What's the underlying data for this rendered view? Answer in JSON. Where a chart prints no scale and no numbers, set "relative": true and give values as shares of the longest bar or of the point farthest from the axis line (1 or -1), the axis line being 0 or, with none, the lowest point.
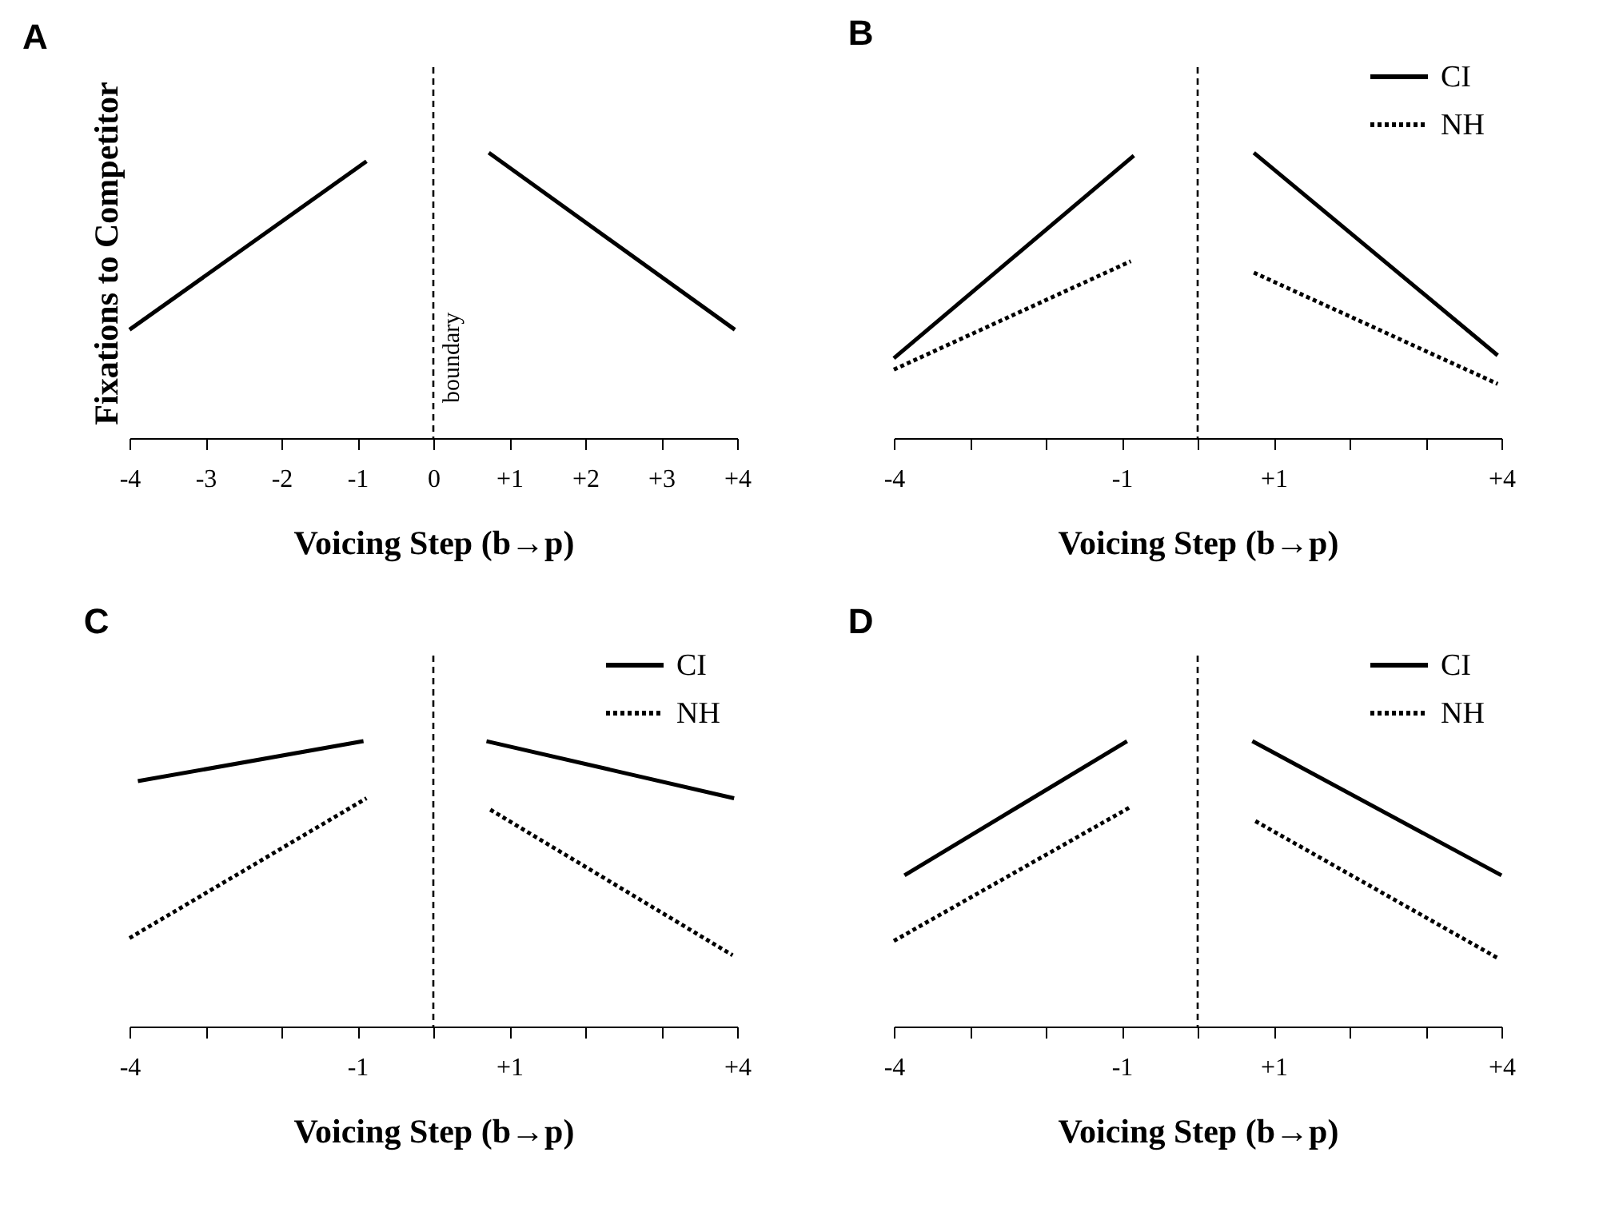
{
  "chart_data": [
    {
      "type": "line",
      "title": "A",
      "xlabel": "Voicing Step (b→p)",
      "ylabel": "Fixations to Competitor",
      "relative": true,
      "tick_labels": "x",
      "xlim": [
        -4,
        4
      ],
      "xticks": [
        -4,
        -3,
        -2,
        {
          "value": -1,
          "label": "-1"
        },
        0,
        {
          "value": 1,
          "label": "+1"
        },
        {
          "value": 2,
          "label": "+2"
        },
        {
          "value": 3,
          "label": "+3"
        },
        {
          "value": 4,
          "label": "+4"
        }
      ],
      "grid": false,
      "legend": false,
      "series": [
        {
          "color": "#000000",
          "line_style": "solid",
          "x": [
            -4,
            -0.88,
            0,
            0.73,
            3.97
          ],
          "values": [
            0.38,
            0.97,
            null,
            1,
            0.38
          ]
        }
      ],
      "ref_lines": [
        {
          "axis": "x",
          "value": 0,
          "label": "boundary",
          "color": "#000000",
          "line_style": "dashed"
        }
      ]
    },
    {
      "type": "line",
      "title": "B",
      "xlabel": "Voicing Step (b→p)",
      "relative": true,
      "tick_labels": "x",
      "xlim": [
        -4,
        4
      ],
      "xticks": [
        -4,
        {
          "value": -3,
          "label": null
        },
        {
          "value": -2,
          "label": null
        },
        -1,
        {
          "value": 0,
          "label": null
        },
        {
          "value": 1,
          "label": "+1"
        },
        {
          "value": 2,
          "label": null
        },
        {
          "value": 3,
          "label": null
        },
        {
          "value": 4,
          "label": "+4"
        }
      ],
      "grid": false,
      "legend": "top right",
      "series": [
        {
          "name": "CI",
          "color": "#000000",
          "line_style": "solid",
          "x": [
            -4,
            -0.84,
            0,
            0.74,
            3.95
          ],
          "values": [
            0.28,
            0.99,
            null,
            1,
            0.29
          ]
        },
        {
          "name": "NH",
          "color": "#000000",
          "line_style": "dotted",
          "x": [
            -4,
            -0.88,
            0,
            0.74,
            3.95
          ],
          "values": [
            0.24,
            0.62,
            null,
            0.58,
            0.19
          ]
        }
      ],
      "ref_lines": [
        {
          "axis": "x",
          "value": 0,
          "color": "#000000",
          "line_style": "dashed"
        }
      ]
    },
    {
      "type": "line",
      "title": "C",
      "xlabel": "Voicing Step (b→p)",
      "relative": true,
      "tick_labels": "x",
      "xlim": [
        -4,
        4
      ],
      "xticks": [
        -4,
        {
          "value": -3,
          "label": null
        },
        {
          "value": -2,
          "label": null
        },
        -1,
        {
          "value": 0,
          "label": null
        },
        {
          "value": 1,
          "label": "+1"
        },
        {
          "value": 2,
          "label": null
        },
        {
          "value": 3,
          "label": null
        },
        {
          "value": 4,
          "label": "+4"
        }
      ],
      "grid": false,
      "legend": "top right",
      "series": [
        {
          "name": "CI",
          "color": "#000000",
          "line_style": "solid",
          "x": [
            -3.89,
            -0.92,
            0,
            0.7,
            3.96
          ],
          "values": [
            0.86,
            1,
            null,
            1,
            0.8
          ]
        },
        {
          "name": "NH",
          "color": "#000000",
          "line_style": "dotted",
          "x": [
            -4,
            -0.88,
            0,
            0.75,
            3.94
          ],
          "values": [
            0.31,
            0.8,
            null,
            0.76,
            0.25
          ]
        }
      ],
      "ref_lines": [
        {
          "axis": "x",
          "value": 0,
          "color": "#000000",
          "line_style": "dashed"
        }
      ]
    },
    {
      "type": "line",
      "title": "D",
      "xlabel": "Voicing Step (b→p)",
      "relative": true,
      "tick_labels": "x",
      "xlim": [
        -4,
        4
      ],
      "xticks": [
        -4,
        {
          "value": -3,
          "label": null
        },
        {
          "value": -2,
          "label": null
        },
        -1,
        {
          "value": 0,
          "label": null
        },
        {
          "value": 1,
          "label": "+1"
        },
        {
          "value": 2,
          "label": null
        },
        {
          "value": 3,
          "label": null
        },
        {
          "value": 4,
          "label": "+4"
        }
      ],
      "grid": false,
      "legend": "top right",
      "series": [
        {
          "name": "CI",
          "color": "#000000",
          "line_style": "solid",
          "x": [
            -3.86,
            -0.93,
            0,
            0.72,
            4
          ],
          "values": [
            0.53,
            1,
            null,
            1,
            0.53
          ]
        },
        {
          "name": "NH",
          "color": "#000000",
          "line_style": "dotted",
          "x": [
            -4,
            -0.88,
            0,
            0.76,
            3.95
          ],
          "values": [
            0.3,
            0.77,
            null,
            0.72,
            0.24
          ]
        }
      ],
      "ref_lines": [
        {
          "axis": "x",
          "value": 0,
          "color": "#000000",
          "line_style": "dashed"
        }
      ]
    }
  ]
}
